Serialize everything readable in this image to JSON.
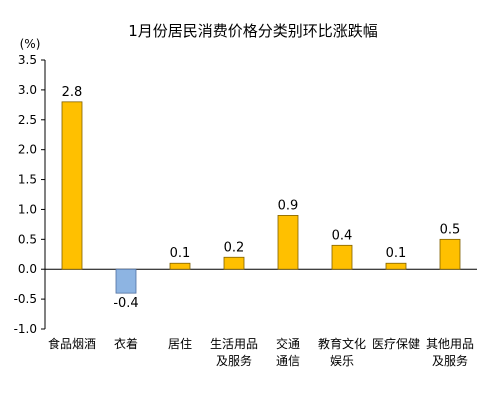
{
  "chart_data": {
    "type": "bar",
    "title": "1月份居民消费价格分类别环比涨跌幅",
    "ylabel": "(%)",
    "xlabel": "",
    "ylim": [
      -1.0,
      3.5
    ],
    "yticks": [
      "3.5",
      "3.0",
      "2.5",
      "2.0",
      "1.5",
      "1.0",
      "0.5",
      "0.0",
      "-0.5",
      "-1.0"
    ],
    "categories": [
      [
        "食品烟酒"
      ],
      [
        "衣着"
      ],
      [
        "居住"
      ],
      [
        "生活用品",
        "及服务"
      ],
      [
        "交通",
        "通信"
      ],
      [
        "教育文化",
        "娱乐"
      ],
      [
        "医疗保健"
      ],
      [
        "其他用品",
        "及服务"
      ]
    ],
    "values": [
      2.8,
      -0.4,
      0.1,
      0.2,
      0.9,
      0.4,
      0.1,
      0.5
    ],
    "value_labels": [
      "2.8",
      "-0.4",
      "0.1",
      "0.2",
      "0.9",
      "0.4",
      "0.1",
      "0.5"
    ],
    "grid": false,
    "legend": "none",
    "colors": {
      "positive": "#FFC000",
      "negative": "#8DB4E2",
      "bar_stroke": "#7F6000",
      "neg_stroke": "#4F6FA0",
      "axis": "#000000"
    }
  }
}
